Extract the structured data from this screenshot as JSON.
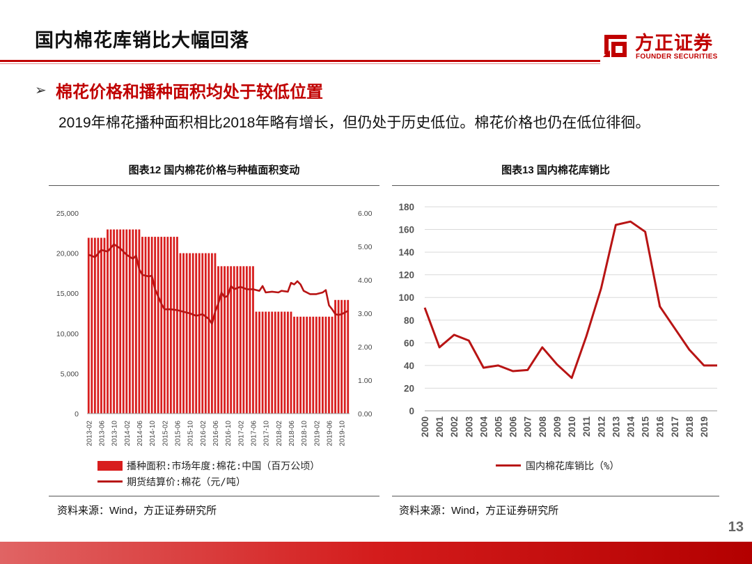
{
  "page": {
    "title": "国内棉花库销比大幅回落",
    "subheading": "棉花价格和播种面积均处于较低位置",
    "description": "2019年棉花播种面积相比2018年略有增长，但仍处于历史低位。棉花价格也仍在低位徘徊。",
    "page_number": "13",
    "bullet_icon": "chevron-right-icon"
  },
  "logo": {
    "name_cn": "方正证券",
    "name_en": "FOUNDER SECURITIES",
    "brand_color": "#c00000"
  },
  "colors": {
    "accent": "#c00000",
    "bar": "#d81e1e",
    "line": "#b81414"
  },
  "chart12": {
    "title": "图表12 国内棉花价格与种植面积变动",
    "legend_bar": "播种面积:市场年度:棉花:中国（百万公顷）",
    "legend_line": "期货结算价:棉花（元/吨）",
    "source": "资料来源：Wind，方正证券研究所"
  },
  "chart13": {
    "title": "图表13 国内棉花库销比",
    "legend_line": "国内棉花库销比（%）",
    "source": "资料来源：Wind，方正证券研究所"
  },
  "chart_data": [
    {
      "type": "bar+line",
      "title": "图表12 国内棉花价格与种植面积变动",
      "x_ticks": [
        "2013-02",
        "2013-06",
        "2013-10",
        "2014-02",
        "2014-06",
        "2014-10",
        "2015-02",
        "2015-06",
        "2015-10",
        "2016-02",
        "2016-06",
        "2016-10",
        "2017-02",
        "2017-06",
        "2017-10",
        "2018-02",
        "2018-06",
        "2018-10",
        "2019-02",
        "2019-06",
        "2019-10"
      ],
      "y_left_ticks": [
        "0",
        "5,000",
        "10,000",
        "15,000",
        "20,000",
        "25,000"
      ],
      "y_left_lim": [
        0,
        25000
      ],
      "y_right_ticks": [
        "0.00",
        "1.00",
        "2.00",
        "3.00",
        "4.00",
        "5.00",
        "6.00"
      ],
      "y_right_lim": [
        0,
        6
      ],
      "bar_series": {
        "name": "播种面积:市场年度:棉花:中国（百万公顷）",
        "axis": "right",
        "segments": [
          {
            "from": "2013-02",
            "to": "2013-07",
            "value": 5.26
          },
          {
            "from": "2013-08",
            "to": "2014-06",
            "value": 5.51
          },
          {
            "from": "2014-07",
            "to": "2015-06",
            "value": 5.29
          },
          {
            "from": "2015-07",
            "to": "2016-06",
            "value": 4.8
          },
          {
            "from": "2016-07",
            "to": "2017-06",
            "value": 4.41
          },
          {
            "from": "2017-07",
            "to": "2018-06",
            "value": 3.05
          },
          {
            "from": "2018-07",
            "to": "2019-07",
            "value": 2.9
          },
          {
            "from": "2019-08",
            "to": "2019-12",
            "value": 3.4
          }
        ]
      },
      "line_series": {
        "name": "期货结算价:棉花（元/吨）",
        "axis": "left",
        "points": [
          [
            "2013-02",
            19800
          ],
          [
            "2013-04",
            19500
          ],
          [
            "2013-06",
            20400
          ],
          [
            "2013-08",
            20200
          ],
          [
            "2013-10",
            21100
          ],
          [
            "2013-12",
            20600
          ],
          [
            "2014-02",
            19800
          ],
          [
            "2014-04",
            19300
          ],
          [
            "2014-05",
            19700
          ],
          [
            "2014-06",
            18000
          ],
          [
            "2014-07",
            17300
          ],
          [
            "2014-09",
            17100
          ],
          [
            "2014-10",
            17200
          ],
          [
            "2014-11",
            15500
          ],
          [
            "2015-01",
            13700
          ],
          [
            "2015-02",
            13000
          ],
          [
            "2015-04",
            13000
          ],
          [
            "2015-06",
            12900
          ],
          [
            "2015-08",
            12700
          ],
          [
            "2015-10",
            12500
          ],
          [
            "2015-12",
            12200
          ],
          [
            "2016-02",
            12400
          ],
          [
            "2016-04",
            11800
          ],
          [
            "2016-05",
            11200
          ],
          [
            "2016-06",
            12700
          ],
          [
            "2016-07",
            13700
          ],
          [
            "2016-08",
            15100
          ],
          [
            "2016-09",
            14500
          ],
          [
            "2016-10",
            14700
          ],
          [
            "2016-11",
            15900
          ],
          [
            "2016-12",
            15500
          ],
          [
            "2017-02",
            15800
          ],
          [
            "2017-04",
            15500
          ],
          [
            "2017-06",
            15500
          ],
          [
            "2017-07",
            15400
          ],
          [
            "2017-08",
            15300
          ],
          [
            "2017-09",
            15900
          ],
          [
            "2017-10",
            15100
          ],
          [
            "2017-12",
            15200
          ],
          [
            "2018-02",
            15100
          ],
          [
            "2018-03",
            15300
          ],
          [
            "2018-05",
            15200
          ],
          [
            "2018-06",
            16300
          ],
          [
            "2018-07",
            16100
          ],
          [
            "2018-08",
            16500
          ],
          [
            "2018-09",
            16100
          ],
          [
            "2018-10",
            15300
          ],
          [
            "2018-12",
            14900
          ],
          [
            "2019-02",
            14900
          ],
          [
            "2019-04",
            15100
          ],
          [
            "2019-05",
            15400
          ],
          [
            "2019-06",
            13500
          ],
          [
            "2019-07",
            13000
          ],
          [
            "2019-08",
            12400
          ],
          [
            "2019-09",
            12300
          ],
          [
            "2019-10",
            12400
          ],
          [
            "2019-12",
            12800
          ]
        ]
      }
    },
    {
      "type": "line",
      "title": "图表13 国内棉花库销比",
      "x": [
        "2000",
        "2001",
        "2002",
        "2003",
        "2004",
        "2005",
        "2006",
        "2007",
        "2008",
        "2009",
        "2010",
        "2011",
        "2012",
        "2013",
        "2014",
        "2015",
        "2016",
        "2017",
        "2018",
        "2019"
      ],
      "y_ticks": [
        "0",
        "20",
        "40",
        "60",
        "80",
        "100",
        "120",
        "140",
        "160",
        "180"
      ],
      "ylim": [
        0,
        180
      ],
      "series": [
        {
          "name": "国内棉花库销比（%）",
          "x": [
            2000,
            2001,
            2002,
            2003,
            2004,
            2005,
            2006,
            2007,
            2008,
            2009,
            2010,
            2011,
            2012,
            2013,
            2014,
            2015,
            2016,
            2017,
            2018,
            2019,
            2019.9
          ],
          "values": [
            91,
            56,
            67,
            62,
            38,
            40,
            35,
            36,
            56,
            41,
            29,
            66,
            108,
            164,
            167,
            158,
            92,
            73,
            54,
            40,
            40
          ]
        }
      ]
    }
  ]
}
